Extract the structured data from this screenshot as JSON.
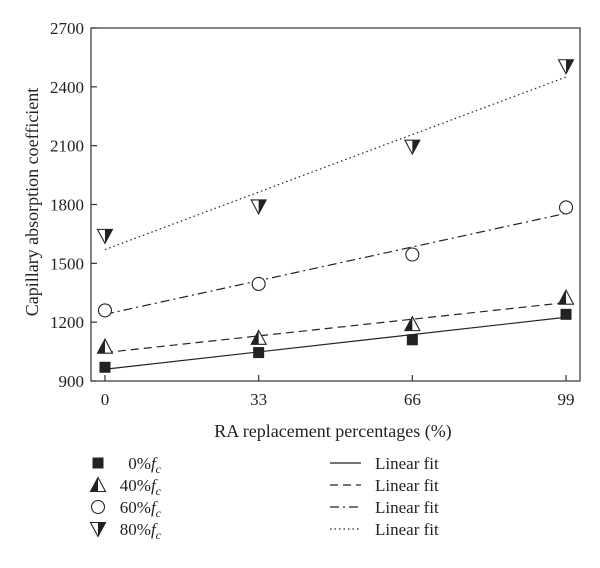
{
  "chart_data": {
    "type": "scatter",
    "xlabel": "RA replacement percentages (%)",
    "ylabel": "Capillary absorption coefficient",
    "x_ticks": [
      0,
      33,
      66,
      99
    ],
    "y_ticks": [
      900,
      1200,
      1500,
      1800,
      2100,
      2400,
      2700
    ],
    "xlim": [
      -3,
      102
    ],
    "ylim": [
      900,
      2700
    ],
    "grid": false,
    "legend_position": "bottom",
    "x": [
      0,
      33,
      66,
      99
    ],
    "series": [
      {
        "name": "0%",
        "name_suffix": "c",
        "name_letter": "f",
        "marker": "square-filled",
        "values": [
          970,
          1045,
          1110,
          1240
        ],
        "fit": {
          "label": "Linear fit",
          "dash": "solid",
          "y0": 960,
          "y99": 1225
        }
      },
      {
        "name": "40%",
        "name_suffix": "c",
        "name_letter": "f",
        "marker": "triangle-up-half",
        "values": [
          1075,
          1120,
          1190,
          1325
        ],
        "fit": {
          "label": "Linear fit",
          "dash": "dashed",
          "y0": 1045,
          "y99": 1300
        }
      },
      {
        "name": "60%",
        "name_suffix": "c",
        "name_letter": "f",
        "marker": "circle-open",
        "values": [
          1260,
          1395,
          1545,
          1785
        ],
        "fit": {
          "label": "Linear fit",
          "dash": "dashdot",
          "y0": 1240,
          "y99": 1755
        }
      },
      {
        "name": "80%",
        "name_suffix": "c",
        "name_letter": "f",
        "marker": "triangle-down-half",
        "values": [
          1640,
          1790,
          2095,
          2505
        ],
        "fit": {
          "label": "Linear fit",
          "dash": "dotted",
          "y0": 1570,
          "y99": 2450
        }
      }
    ]
  }
}
